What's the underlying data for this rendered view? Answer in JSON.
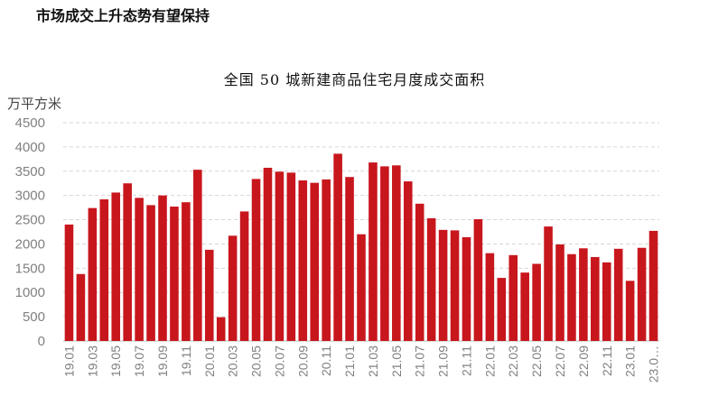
{
  "page": {
    "heading": "市场成交上升态势有望保持"
  },
  "chart_data": {
    "type": "bar",
    "title": "全国 50 城新建商品住宅月度成交面积",
    "ylabel": "万平方米",
    "ylim": [
      0,
      4500
    ],
    "yticks": [
      0,
      500,
      1000,
      1500,
      2000,
      2500,
      3000,
      3500,
      4000,
      4500
    ],
    "grid": true,
    "bar_color": "#c8161d",
    "categories": [
      "19.01",
      "19.02",
      "19.03",
      "19.04",
      "19.05",
      "19.06",
      "19.07",
      "19.08",
      "19.09",
      "19.10",
      "19.11",
      "19.12",
      "20.01",
      "20.02",
      "20.03",
      "20.04",
      "20.05",
      "20.06",
      "20.07",
      "20.08",
      "20.09",
      "20.10",
      "20.11",
      "20.12",
      "21.01",
      "21.02",
      "21.03",
      "21.04",
      "21.05",
      "21.06",
      "21.07",
      "21.08",
      "21.09",
      "21.10",
      "21.11",
      "21.12",
      "22.01",
      "22.02",
      "22.03",
      "22.04",
      "22.05",
      "22.06",
      "22.07",
      "22.08",
      "22.09",
      "22.10",
      "22.11",
      "22.12",
      "23.01",
      "23.02",
      "23.03"
    ],
    "tick_labels": [
      "19.01",
      "",
      "19.03",
      "",
      "19.05",
      "",
      "19.07",
      "",
      "19.09",
      "",
      "19.11",
      "",
      "20.01",
      "",
      "20.03",
      "",
      "20.05",
      "",
      "20.07",
      "",
      "20.09",
      "",
      "20.11",
      "",
      "21.01",
      "",
      "21.03",
      "",
      "21.05",
      "",
      "21.07",
      "",
      "21.09",
      "",
      "21.11",
      "",
      "22.01",
      "",
      "22.03",
      "",
      "22.05",
      "",
      "22.07",
      "",
      "22.09",
      "",
      "22.11",
      "",
      "23.01",
      "",
      "23.0…"
    ],
    "values": [
      2400,
      1380,
      2740,
      2920,
      3060,
      3250,
      2950,
      2800,
      3000,
      2770,
      2860,
      3530,
      1880,
      490,
      2170,
      2670,
      3340,
      3570,
      3490,
      3470,
      3310,
      3260,
      3330,
      3860,
      3380,
      2200,
      3680,
      3600,
      3620,
      3290,
      2830,
      2530,
      2290,
      2280,
      2140,
      2510,
      1810,
      1300,
      1770,
      1410,
      1590,
      2360,
      1990,
      1790,
      1910,
      1730,
      1620,
      1900,
      1240,
      1920,
      2270
    ]
  }
}
